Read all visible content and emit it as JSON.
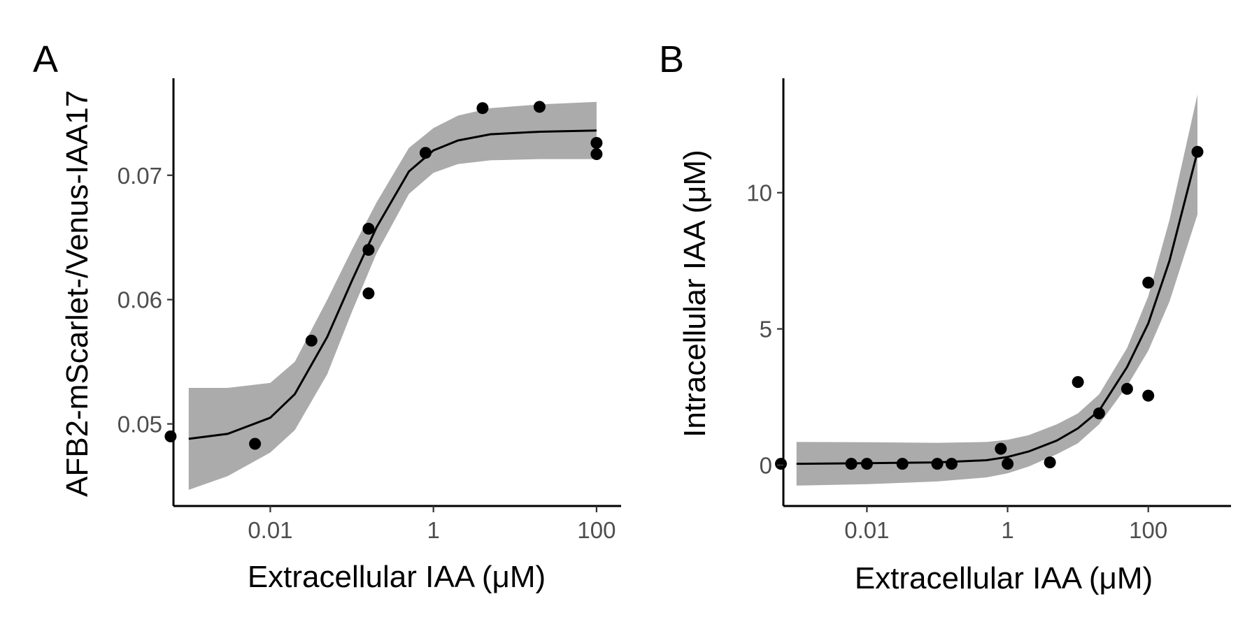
{
  "chart_data": [
    {
      "panel_label": "A",
      "type": "scatter",
      "xlabel": "Extracellular IAA (μM)",
      "ylabel": "AFB2-mScarlet-/Venus-IAA17",
      "x_scale": "log10",
      "xlim": [
        0.00065,
        200
      ],
      "ylim": [
        0.0434,
        0.0778
      ],
      "x_ticks": [
        0.01,
        1,
        100
      ],
      "x_tick_labels": [
        "0.01",
        "1",
        "100"
      ],
      "y_ticks": [
        0.05,
        0.06,
        0.07
      ],
      "y_tick_labels": [
        "0.05",
        "0.06",
        "0.07"
      ],
      "grid": false,
      "points": [
        {
          "x": 0.0006,
          "y": 0.049
        },
        {
          "x": 0.0065,
          "y": 0.0484
        },
        {
          "x": 0.032,
          "y": 0.0567
        },
        {
          "x": 0.16,
          "y": 0.0657
        },
        {
          "x": 0.16,
          "y": 0.064
        },
        {
          "x": 0.16,
          "y": 0.0605
        },
        {
          "x": 0.8,
          "y": 0.0718
        },
        {
          "x": 4.0,
          "y": 0.0754
        },
        {
          "x": 20.0,
          "y": 0.0755
        },
        {
          "x": 100.0,
          "y": 0.0726
        },
        {
          "x": 100.0,
          "y": 0.0717
        }
      ],
      "fit": {
        "x": [
          0.001,
          0.003,
          0.01,
          0.02,
          0.05,
          0.1,
          0.2,
          0.5,
          1,
          2,
          5,
          20,
          100
        ],
        "y": [
          0.0488,
          0.0492,
          0.0505,
          0.0524,
          0.057,
          0.0615,
          0.0658,
          0.0703,
          0.072,
          0.0728,
          0.0733,
          0.0735,
          0.0736
        ],
        "lower": [
          0.0447,
          0.0458,
          0.0477,
          0.0495,
          0.054,
          0.059,
          0.0637,
          0.0685,
          0.0702,
          0.0709,
          0.0712,
          0.0713,
          0.0713
        ],
        "upper": [
          0.0529,
          0.0529,
          0.0533,
          0.055,
          0.06,
          0.064,
          0.0678,
          0.0722,
          0.0738,
          0.0748,
          0.0754,
          0.0757,
          0.0759
        ]
      }
    },
    {
      "panel_label": "B",
      "type": "scatter",
      "xlabel": "Extracellular IAA (μM)",
      "ylabel": "Intracellular IAA (μM)",
      "x_scale": "log10",
      "xlim": [
        0.00065,
        1500
      ],
      "ylim": [
        -1.5,
        14.2
      ],
      "x_ticks": [
        0.01,
        1,
        100
      ],
      "x_tick_labels": [
        "0.01",
        "1",
        "100"
      ],
      "y_ticks": [
        0,
        5,
        10
      ],
      "y_tick_labels": [
        "0",
        "5",
        "10"
      ],
      "grid": false,
      "points": [
        {
          "x": 0.0006,
          "y": 0.05
        },
        {
          "x": 0.006,
          "y": 0.05
        },
        {
          "x": 0.01,
          "y": 0.05
        },
        {
          "x": 0.032,
          "y": 0.05
        },
        {
          "x": 0.1,
          "y": 0.05
        },
        {
          "x": 0.16,
          "y": 0.05
        },
        {
          "x": 0.8,
          "y": 0.6
        },
        {
          "x": 1.0,
          "y": 0.05
        },
        {
          "x": 4.0,
          "y": 0.1
        },
        {
          "x": 10.0,
          "y": 3.05
        },
        {
          "x": 20.0,
          "y": 1.9
        },
        {
          "x": 50.0,
          "y": 2.8
        },
        {
          "x": 100.0,
          "y": 6.7
        },
        {
          "x": 100.0,
          "y": 2.55
        },
        {
          "x": 500.0,
          "y": 11.5
        }
      ],
      "fit": {
        "x": [
          0.001,
          0.01,
          0.1,
          0.5,
          1,
          2,
          5,
          10,
          20,
          50,
          100,
          200,
          500
        ],
        "y": [
          0.05,
          0.07,
          0.1,
          0.18,
          0.3,
          0.5,
          0.9,
          1.35,
          2.0,
          3.6,
          5.2,
          7.5,
          11.5
        ],
        "lower": [
          -0.75,
          -0.7,
          -0.6,
          -0.45,
          -0.3,
          -0.05,
          0.4,
          0.8,
          1.5,
          2.9,
          4.2,
          6.0,
          9.2
        ],
        "upper": [
          0.85,
          0.84,
          0.82,
          0.85,
          0.93,
          1.1,
          1.5,
          1.9,
          2.6,
          4.3,
          6.2,
          9.0,
          13.6
        ]
      }
    }
  ]
}
